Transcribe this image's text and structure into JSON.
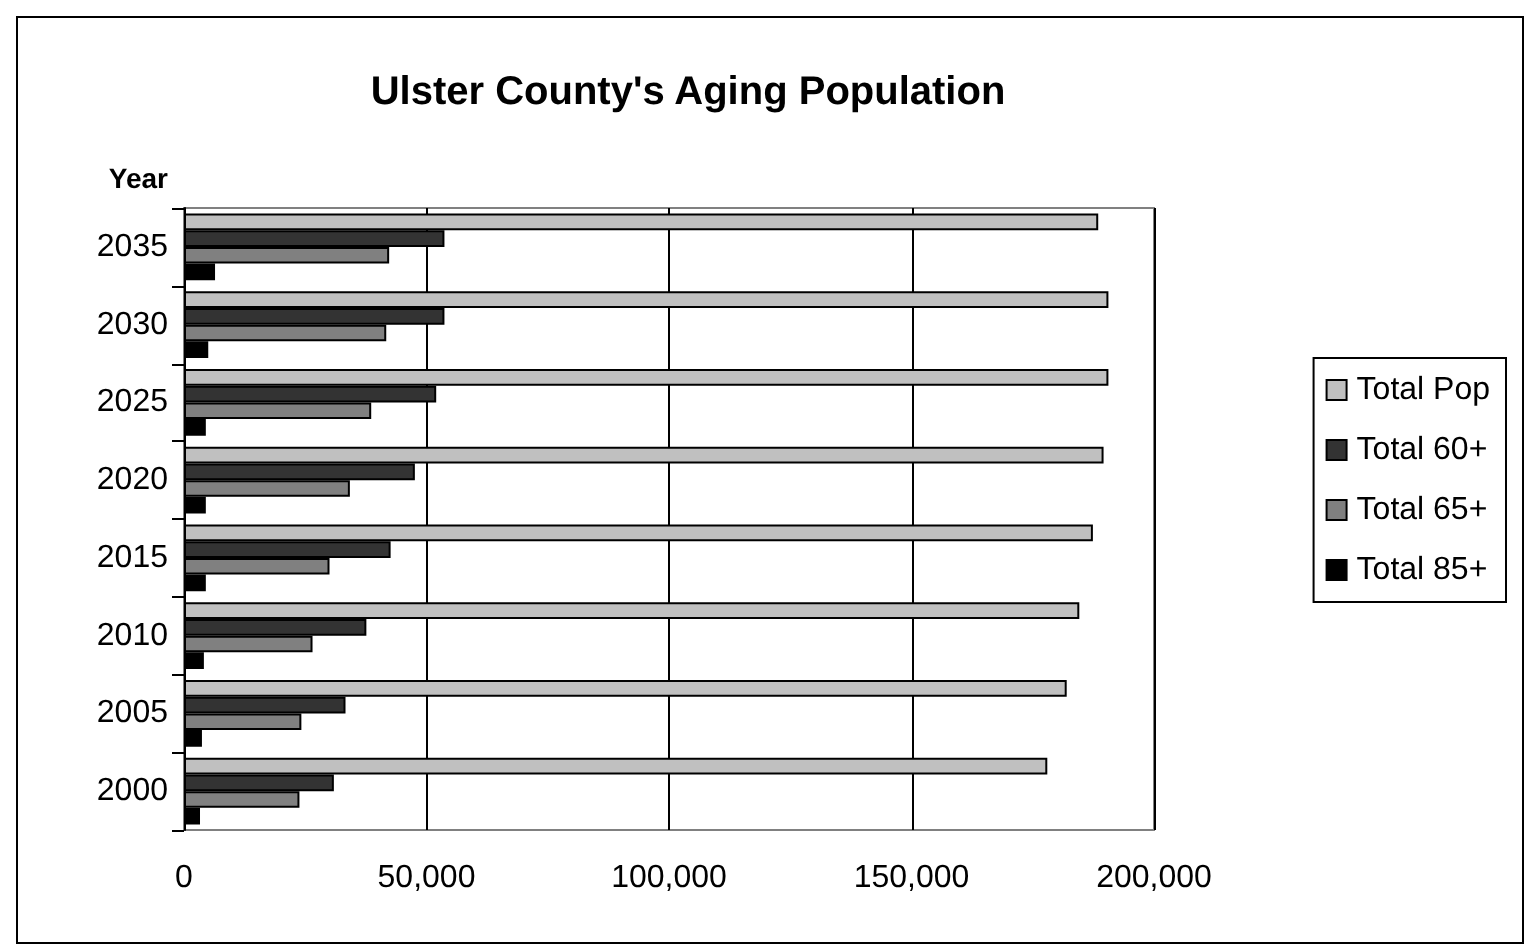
{
  "chart_data": {
    "type": "bar",
    "orientation": "horizontal",
    "title": "Ulster County's Aging Population",
    "ylabel": "Year",
    "categories": [
      "2035",
      "2030",
      "2025",
      "2020",
      "2015",
      "2010",
      "2005",
      "2000"
    ],
    "series": [
      {
        "name": "Total Pop",
        "color": "#c0c0c0",
        "values": [
          188500,
          190600,
          190600,
          189600,
          187400,
          184600,
          182000,
          178000
        ]
      },
      {
        "name": "Total 60+",
        "color": "#333333",
        "values": [
          53700,
          53700,
          52000,
          47600,
          42600,
          37600,
          33300,
          30900
        ]
      },
      {
        "name": "Total 65+",
        "color": "#808080",
        "values": [
          42300,
          41700,
          38600,
          34200,
          30000,
          26500,
          24200,
          23800
        ]
      },
      {
        "name": "Total 85+",
        "color": "#000000",
        "values": [
          6400,
          5000,
          4500,
          4500,
          4500,
          4100,
          3700,
          3300
        ]
      }
    ],
    "xlim": [
      0,
      200000
    ],
    "xticks": [
      0,
      {
        "value": 50000,
        "label": "50,000"
      },
      {
        "value": 100000,
        "label": "100,000"
      },
      {
        "value": 150000,
        "label": "150,000"
      },
      {
        "value": 200000,
        "label": "200,000"
      }
    ],
    "grid": "x",
    "legend": "right"
  }
}
